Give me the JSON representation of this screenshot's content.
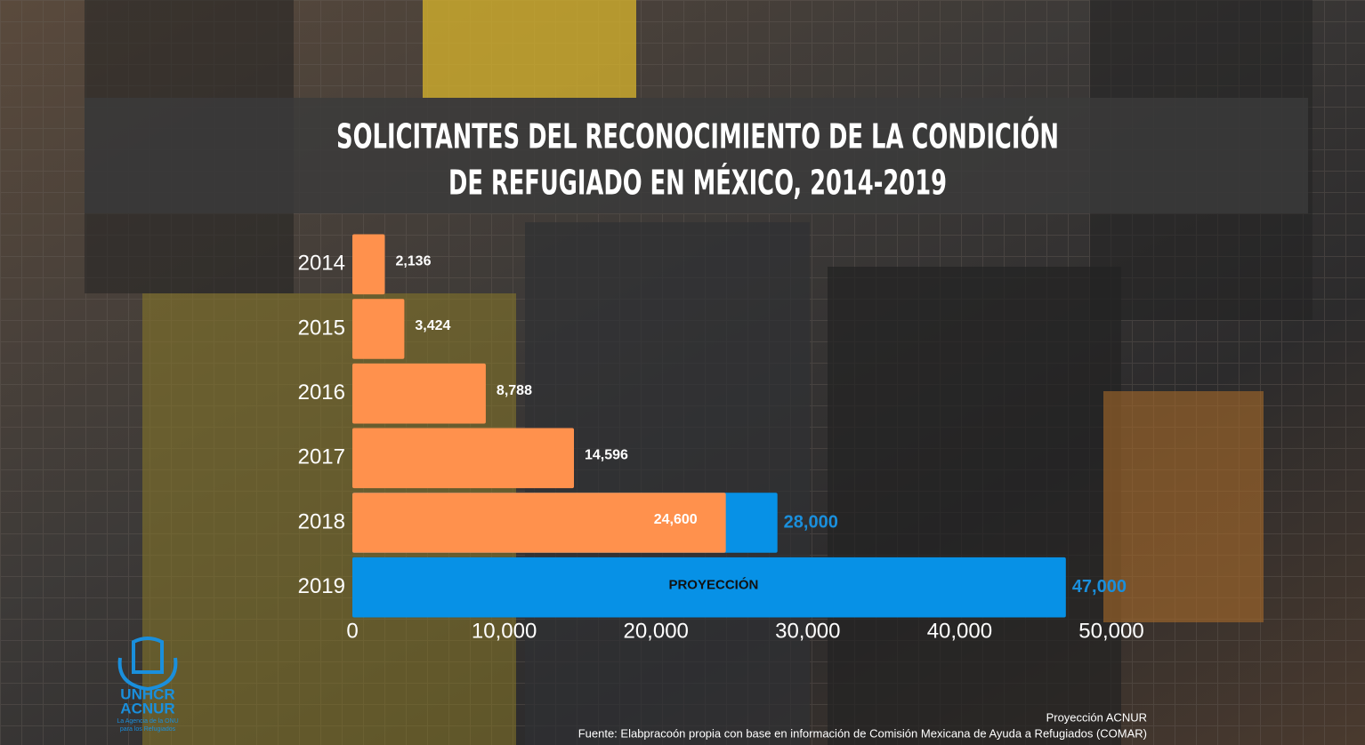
{
  "chart_data": {
    "type": "bar",
    "orientation": "horizontal",
    "title": [
      "SOLICITANTES DEL RECONOCIMIENTO DE LA CONDICIÓN",
      "DE REFUGIADO EN MÉXICO, 2014-2019"
    ],
    "categories": [
      "2014",
      "2015",
      "2016",
      "2017",
      "2018",
      "2019"
    ],
    "series": [
      {
        "color": "#0791e6",
        "name": "PROYECCIÓN",
        "label_color": "#1a8fdc",
        "values": [
          null,
          null,
          null,
          null,
          28000,
          47000
        ],
        "value_labels": [
          null,
          null,
          null,
          null,
          "28,000",
          "47,000"
        ]
      },
      {
        "color": "#ff914d",
        "label_color": "#ffffff",
        "values": [
          2136,
          3424,
          8788,
          14596,
          24600,
          null
        ],
        "value_labels": [
          "2,136",
          "3,424",
          "8,788",
          "14,596",
          "24,600",
          null
        ]
      }
    ],
    "xlim": [
      0,
      50000
    ],
    "xticks": [
      0,
      {
        "value": 10000,
        "label": "10,000"
      },
      {
        "value": 20000,
        "label": "20,000"
      },
      {
        "value": 30000,
        "label": "30,000"
      },
      {
        "value": 40000,
        "label": "40,000"
      },
      {
        "value": 50000,
        "label": "50,000"
      }
    ],
    "notes": [
      "Proyección ACNUR",
      "Fuente: Elabpracoón propia con base en información de Comisión Mexicana de Ayuda a Refugiados (COMAR)"
    ],
    "logo": {
      "name": [
        "UNHCR",
        "ACNUR"
      ],
      "tagline": [
        "La Agencia de la ONU",
        "para los Refugiados"
      ]
    }
  }
}
